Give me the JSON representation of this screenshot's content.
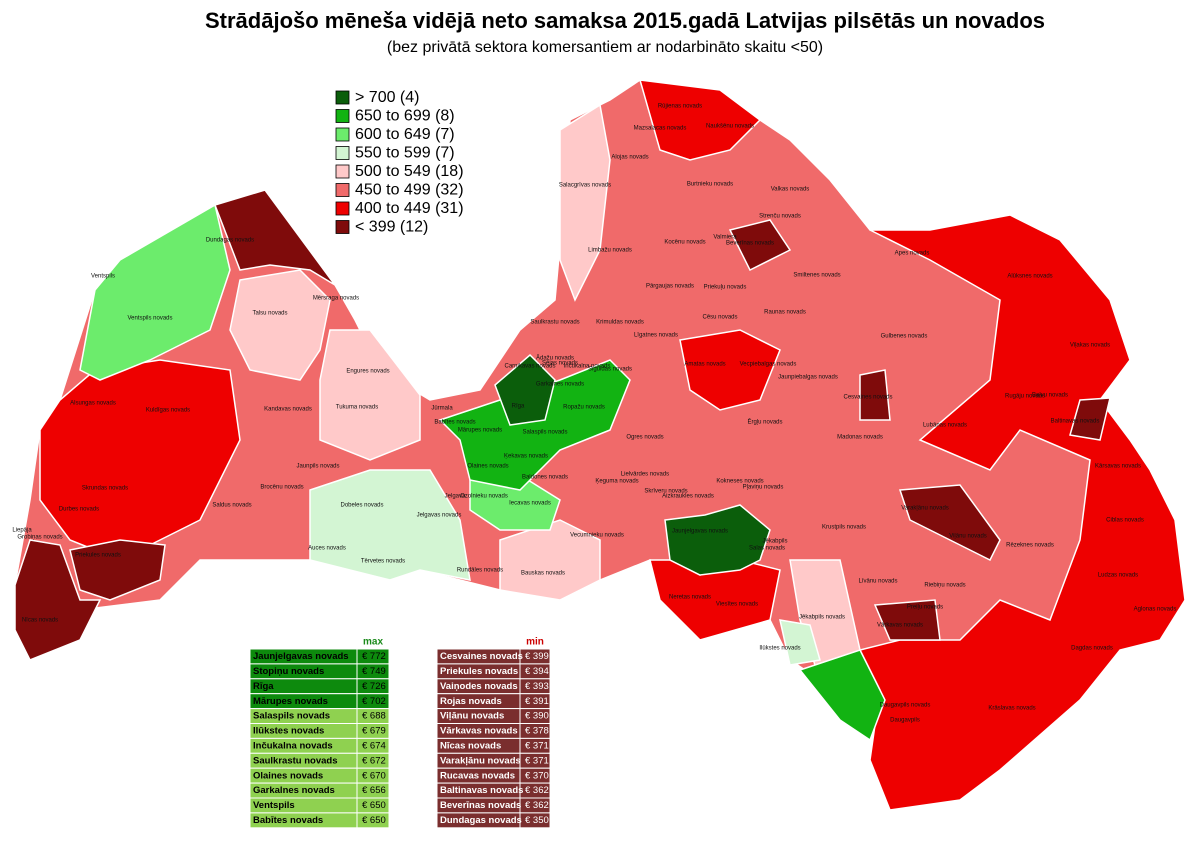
{
  "header": {
    "title": "Strādājošo mēneša vidējā neto samaksa 2015.gadā Latvijas pilsētās un novados",
    "subtitle": "(bez privātā sektora komersantiem ar nodarbināto skaitu <50)"
  },
  "legend": {
    "items": [
      {
        "label": "> 700  (4)",
        "color": "#0b5e0b"
      },
      {
        "label": "650 to 699 (8)",
        "color": "#12b312"
      },
      {
        "label": "600 to 649 (7)",
        "color": "#6cec6c"
      },
      {
        "label": "550 to 599 (7)",
        "color": "#d3f5d3"
      },
      {
        "label": "500 to 549 (18)",
        "color": "#ffc9c9"
      },
      {
        "label": "450 to 499 (32)",
        "color": "#f06a6a"
      },
      {
        "label": "400 to 449 (31)",
        "color": "#ee0000"
      },
      {
        "label": "< 399 (12)",
        "color": "#7f0b0b"
      }
    ]
  },
  "max_table": {
    "header": "max",
    "rows": [
      [
        "Jaunjelgavas novads",
        "€ 772"
      ],
      [
        "Stopiņu novads",
        "€ 749"
      ],
      [
        "Rīga",
        "€ 726"
      ],
      [
        "Mārupes novads",
        "€ 702"
      ],
      [
        "Salaspils novads",
        "€ 688"
      ],
      [
        "Ilūkstes novads",
        "€ 679"
      ],
      [
        "Inčukalna novads",
        "€ 674"
      ],
      [
        "Saulkrastu novads",
        "€ 672"
      ],
      [
        "Olaines novads",
        "€ 670"
      ],
      [
        "Garkalnes novads",
        "€ 656"
      ],
      [
        "Ventspils",
        "€ 650"
      ],
      [
        "Babītes novads",
        "€ 650"
      ]
    ]
  },
  "min_table": {
    "header": "min",
    "rows": [
      [
        "Cesvaines novads",
        "€ 399"
      ],
      [
        "Priekules novads",
        "€ 394"
      ],
      [
        "Vaiņodes novads",
        "€ 393"
      ],
      [
        "Rojas novads",
        "€ 391"
      ],
      [
        "Viļānu novads",
        "€ 390"
      ],
      [
        "Vārkavas novads",
        "€ 378"
      ],
      [
        "Nīcas novads",
        "€ 371"
      ],
      [
        "Varakļānu novads",
        "€ 371"
      ],
      [
        "Rucavas novads",
        "€ 370"
      ],
      [
        "Baltinavas novads",
        "€ 362"
      ],
      [
        "Beverīnas novads",
        "€ 362"
      ],
      [
        "Dundagas novads",
        "€ 350"
      ]
    ]
  },
  "regions": [
    "Dundagas novads",
    "Ventspils",
    "Ventspils novads",
    "Mērsraga novads",
    "Talsu novads",
    "Engures novads",
    "Tukuma novads",
    "Jūrmala",
    "Alsungas novads",
    "Kuldīgas novads",
    "Kandavas novads",
    "Jaunpils novads",
    "Skrundas novads",
    "Durbes novads",
    "Saldus novads",
    "Brocēnu novads",
    "Dobeles novads",
    "Liepāja",
    "Grobiņas novads",
    "Priekules novads",
    "Nīcas novads",
    "Auces novads",
    "Tērvetes novads",
    "Jelgavas novads",
    "Jelgava",
    "Ozolnieku novads",
    "Iecavas novads",
    "Bauskas novads",
    "Rundāles novads",
    "Vecumnieku novads",
    "Olaines novads",
    "Ķekavas novads",
    "Baldones novads",
    "Babītes novads",
    "Mārupes novads",
    "Rīga",
    "Salaspils novads",
    "Ropažu novads",
    "Garkalnes novads",
    "Ādažu novads",
    "Carnikavas novads",
    "Saulkrastu novads",
    "Sējas novads",
    "Inčukalna novads",
    "Siguldas novads",
    "Krimuldas novads",
    "Salacgrīvas novads",
    "Limbažu novads",
    "Alojas novads",
    "Mazsalacas novads",
    "Rūjienas novads",
    "Naukšēnu novads",
    "Burtnieku novads",
    "Valkas novads",
    "Kocēnu novads",
    "Valmiera",
    "Beverīnas novads",
    "Strenču novads",
    "Pārgaujas novads",
    "Priekuļu novads",
    "Smiltenes novads",
    "Cēsu novads",
    "Raunas novads",
    "Līgatnes novads",
    "Amatas novads",
    "Vecpiebalgas novads",
    "Jaunpiebalgas novads",
    "Gulbenes novads",
    "Apes novads",
    "Alūksnes novads",
    "Viļakas novads",
    "Baltinavas novads",
    "Balvu novads",
    "Rugāju novads",
    "Lubānas novads",
    "Cesvaines novads",
    "Madonas novads",
    "Ērgļu novads",
    "Ogres novads",
    "Lielvārdes novads",
    "Ķeguma novads",
    "Skrīveru novads",
    "Aizkraukles novads",
    "Kokneses novads",
    "Pļaviņu novads",
    "Jaunjelgavas novads",
    "Salas novads",
    "Jēkabpils",
    "Neretas novads",
    "Viesītes novads",
    "Jēkabpils novads",
    "Ilūkstes novads",
    "Daugavpils novads",
    "Daugavpils",
    "Krāslavas novads",
    "Dagdas novads",
    "Aglonas novads",
    "Ludzas novads",
    "Ciblas novads",
    "Kārsavas novads",
    "Rēzeknes novads",
    "Viļānu novads",
    "Varakļānu novads",
    "Krustpils novads",
    "Līvānu novads",
    "Riebiņu novads",
    "Preiļu novads",
    "Vārkavas novads"
  ]
}
